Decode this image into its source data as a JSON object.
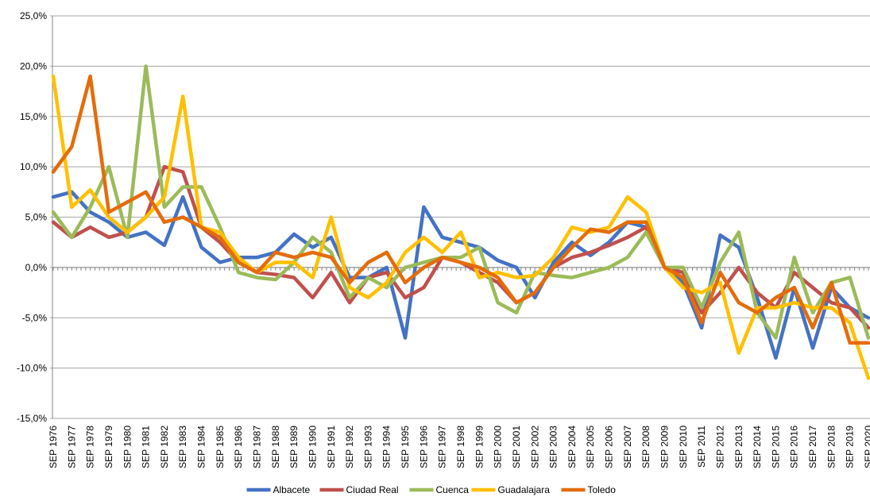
{
  "chart_data": {
    "type": "line",
    "categories": [
      "SEP 1976",
      "SEP 1977",
      "SEP 1978",
      "SEP 1979",
      "SEP 1980",
      "SEP 1981",
      "SEP 1982",
      "SEP 1983",
      "SEP 1984",
      "SEP 1985",
      "SEP 1986",
      "SEP 1987",
      "SEP 1988",
      "SEP 1989",
      "SEP 1990",
      "SEP 1991",
      "SEP 1992",
      "SEP 1993",
      "SEP 1994",
      "SEP 1995",
      "SEP 1996",
      "SEP 1997",
      "SEP 1998",
      "SEP 1999",
      "SEP 2000",
      "SEP 2001",
      "SEP 2002",
      "SEP 2003",
      "SEP 2004",
      "SEP 2005",
      "SEP 2006",
      "SEP 2007",
      "SEP 2008",
      "SEP 2009",
      "SEP 2010",
      "SEP 2011",
      "SEP 2012",
      "SEP 2013",
      "SEP 2014",
      "SEP 2015",
      "SEP 2016",
      "SEP 2017",
      "SEP 2018",
      "SEP 2019",
      "SEP 2020"
    ],
    "series": [
      {
        "name": "Albacete",
        "color": "#4472c4",
        "values": [
          7,
          7.5,
          5.5,
          4.5,
          3,
          3.5,
          2.2,
          7,
          2,
          0.5,
          1,
          1,
          1.5,
          3.3,
          2,
          3,
          -1,
          -1,
          0,
          -7,
          6,
          3,
          2.5,
          2,
          0.7,
          0,
          -3,
          0.5,
          2.5,
          1.2,
          2.5,
          4.5,
          4,
          0,
          -1.5,
          -6,
          3.2,
          2,
          -3,
          -9,
          -2,
          -8,
          -2,
          -4,
          -5
        ]
      },
      {
        "name": "Ciudad Real",
        "color": "#c0504d",
        "values": [
          4.5,
          3,
          4,
          3,
          3.5,
          5,
          10,
          9.5,
          4,
          2.5,
          0.5,
          -0.5,
          -0.7,
          -1,
          -3,
          -0.5,
          -3.5,
          -1,
          -0.5,
          -3,
          -2,
          1,
          0.5,
          -0.5,
          -1.5,
          -3.5,
          -2.5,
          0,
          1,
          1.5,
          2.2,
          3,
          4,
          0,
          -0.5,
          -4.5,
          -2.5,
          0,
          -2.5,
          -4,
          -0.5,
          -2,
          -3.5,
          -4,
          -6
        ]
      },
      {
        "name": "Cuenca",
        "color": "#9bbb59",
        "values": [
          5.5,
          3,
          6,
          10,
          3,
          20,
          6,
          8,
          8,
          4,
          -0.5,
          -1,
          -1.2,
          0.5,
          3,
          1.5,
          -3,
          -1,
          -2,
          0,
          0.5,
          1,
          1,
          2,
          -3.5,
          -4.5,
          -0.5,
          -0.8,
          -1,
          -0.5,
          0,
          1,
          3.5,
          0,
          0,
          -4,
          0.5,
          3.5,
          -4.5,
          -7,
          1,
          -4.5,
          -1.5,
          -1,
          -7
        ]
      },
      {
        "name": "Guadalajara",
        "color": "#ffc000",
        "values": [
          19,
          6,
          7.7,
          5,
          3.5,
          5,
          7,
          17,
          4,
          3.5,
          1,
          -0.5,
          0.5,
          0.5,
          -1,
          5,
          -2,
          -3,
          -1.5,
          1.5,
          3,
          1.5,
          3.5,
          -1,
          -0.5,
          -1,
          -0.8,
          1,
          4,
          3.5,
          4,
          7,
          5.5,
          0,
          -2,
          -2.5,
          -1.5,
          -8.5,
          -4,
          -4,
          -3.5,
          -4,
          -4,
          -5.5,
          -11
        ]
      },
      {
        "name": "Toledo",
        "color": "#e46c0a",
        "values": [
          9.5,
          12,
          19,
          5.5,
          6.5,
          7.5,
          4.5,
          5,
          4,
          3,
          0.5,
          -0.5,
          1.5,
          1,
          1.5,
          1,
          -1.5,
          0.5,
          1.5,
          -1.5,
          0,
          1,
          0.5,
          0,
          -1,
          -3.5,
          -2.5,
          0,
          2,
          3.8,
          3.5,
          4.5,
          4.5,
          0,
          -1,
          -5.5,
          -0.5,
          -3.5,
          -4.5,
          -3,
          -2,
          -6,
          -1.5,
          -7.5,
          -7.5
        ]
      }
    ],
    "ylim": [
      -15,
      25
    ],
    "yticks": [
      {
        "value": -15,
        "label": "-15,0%"
      },
      {
        "value": -10,
        "label": "-10,0%"
      },
      {
        "value": -5,
        "label": "-5,0%"
      },
      {
        "value": 0,
        "label": "0,0%"
      },
      {
        "value": 5,
        "label": "5,0%"
      },
      {
        "value": 10,
        "label": "10,0%"
      },
      {
        "value": 15,
        "label": "15,0%"
      },
      {
        "value": 20,
        "label": "20,0%"
      },
      {
        "value": 25,
        "label": "25,0%"
      }
    ],
    "grid": true,
    "legend": "bottom"
  }
}
